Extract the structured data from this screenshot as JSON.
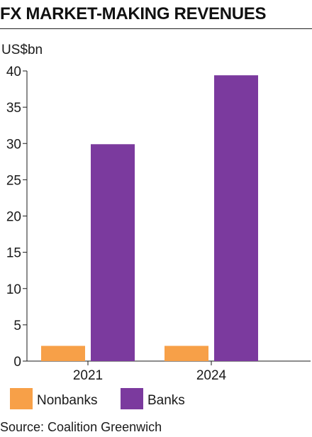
{
  "title": "FX MARKET-MAKING REVENUES",
  "source": "Source: Coalition Greenwich",
  "colors": {
    "nonbanks": "#f7a048",
    "banks": "#7b3a9e",
    "axis": "#1a1a1a"
  },
  "chart_data": {
    "type": "bar",
    "title": "FX MARKET-MAKING REVENUES",
    "ylabel": "US$bn",
    "xlabel": "",
    "categories": [
      "2021",
      "2024"
    ],
    "series": [
      {
        "name": "Nonbanks",
        "values": [
          2.1,
          2.1
        ]
      },
      {
        "name": "Banks",
        "values": [
          29.9,
          39.4
        ]
      }
    ],
    "ylim": [
      0,
      40
    ],
    "yticks": [
      0,
      5,
      10,
      15,
      20,
      25,
      30,
      35,
      40
    ],
    "grid": false,
    "legend": "bottom-left"
  }
}
